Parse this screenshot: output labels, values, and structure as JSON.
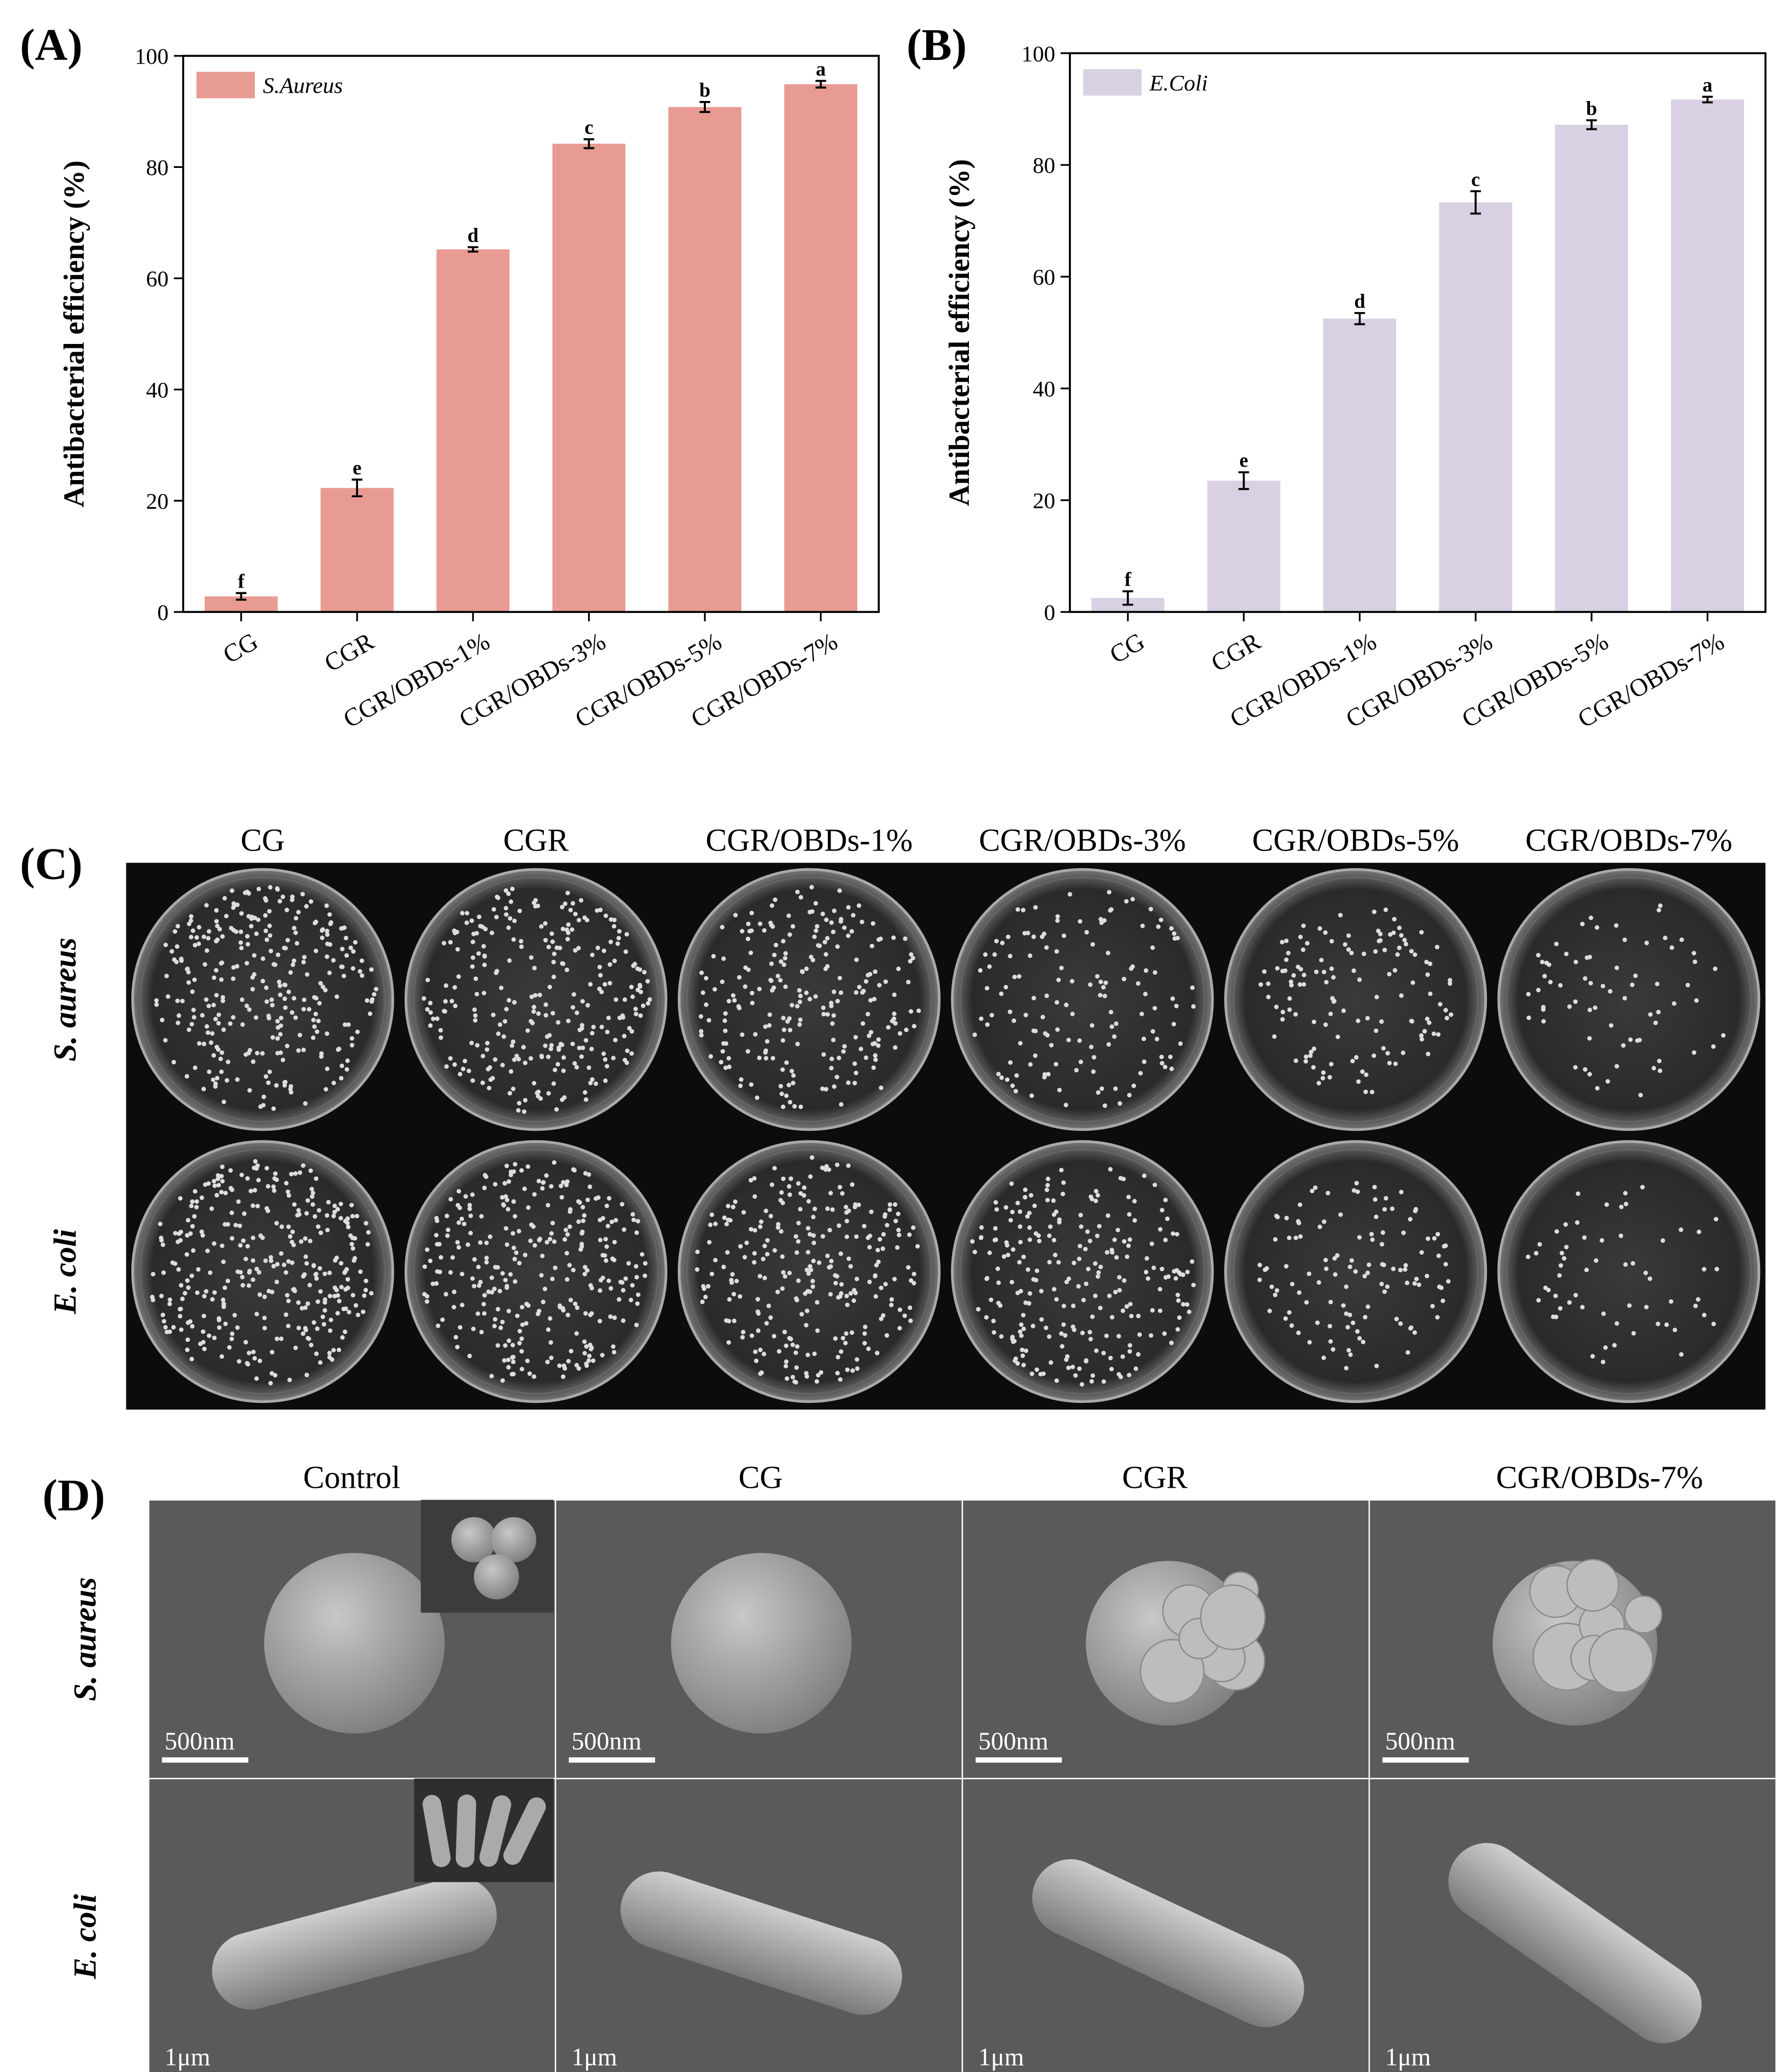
{
  "chart_data": [
    {
      "type": "bar",
      "panel_label": "(A)",
      "ylabel": "Antibacterial efficiency (%)",
      "categories": [
        "CG",
        "CGR",
        "CGR/OBDs-1%",
        "CGR/OBDs-3%",
        "CGR/OBDs-5%",
        "CGR/OBDs-7%"
      ],
      "series": [
        {
          "name": "S.Aureus",
          "color": "#e89b93",
          "values": [
            2.8,
            22.3,
            65.2,
            84.2,
            90.8,
            94.9
          ],
          "errors": [
            0.6,
            1.5,
            0.4,
            0.8,
            0.9,
            0.6
          ],
          "letters": [
            "f",
            "e",
            "d",
            "c",
            "b",
            "a"
          ]
        }
      ],
      "ylim": [
        0,
        100
      ],
      "yticks": [
        0,
        20,
        40,
        60,
        80,
        100
      ],
      "legend": "upper left"
    },
    {
      "type": "bar",
      "panel_label": "(B)",
      "ylabel": "Antibacterial efficiency (%)",
      "categories": [
        "CG",
        "CGR",
        "CGR/OBDs-1%",
        "CGR/OBDs-3%",
        "CGR/OBDs-5%",
        "CGR/OBDs-7%"
      ],
      "series": [
        {
          "name": "E.Coli",
          "color": "#d9d0e4",
          "values": [
            2.5,
            23.5,
            52.5,
            73.3,
            87.2,
            91.7
          ],
          "errors": [
            1.2,
            1.5,
            1.0,
            2.0,
            0.8,
            0.5
          ],
          "letters": [
            "f",
            "e",
            "d",
            "c",
            "b",
            "a"
          ]
        }
      ],
      "ylim": [
        0,
        100
      ],
      "yticks": [
        0,
        20,
        40,
        60,
        80,
        100
      ],
      "legend": "upper left"
    }
  ],
  "panel_c": {
    "label": "(C)",
    "columns": [
      "CG",
      "CGR",
      "CGR/OBDs-1%",
      "CGR/OBDs-3%",
      "CGR/OBDs-5%",
      "CGR/OBDs-7%"
    ],
    "rows": [
      "S. aureus",
      "E. coli"
    ]
  },
  "panel_d": {
    "label": "(D)",
    "columns": [
      "Control",
      "CG",
      "CGR",
      "CGR/OBDs-7%"
    ],
    "rows": [
      "S. aureus",
      "E. coli"
    ],
    "scale_bars": [
      [
        "500nm",
        "500nm",
        "500nm",
        "500nm"
      ],
      [
        "1μm",
        "1μm",
        "1μm",
        "1μm"
      ]
    ]
  }
}
